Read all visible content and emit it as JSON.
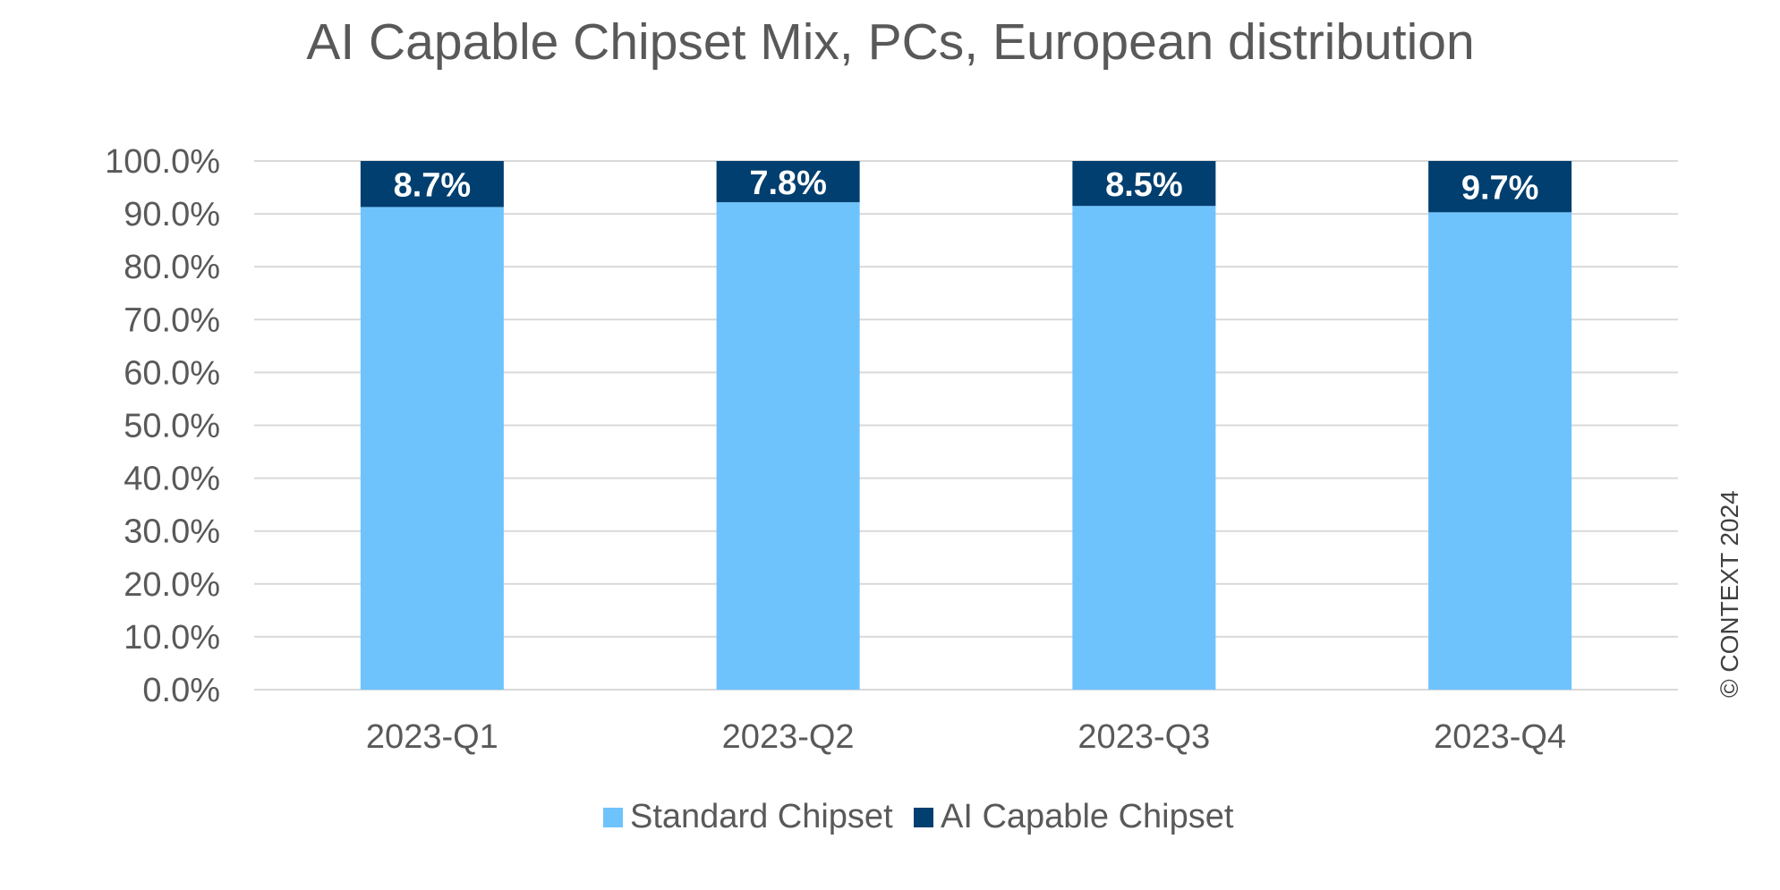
{
  "chart_data": {
    "type": "bar",
    "stacked": true,
    "title": "AI Capable Chipset Mix, PCs, European distribution",
    "categories": [
      "2023-Q1",
      "2023-Q2",
      "2023-Q3",
      "2023-Q4"
    ],
    "series": [
      {
        "name": "Standard Chipset",
        "values": [
          91.3,
          92.2,
          91.5,
          90.3
        ],
        "color": "#6ec3fd"
      },
      {
        "name": "AI Capable Chipset",
        "values": [
          8.7,
          7.8,
          8.5,
          9.7
        ],
        "color": "#003f6f",
        "labels": [
          "8.7%",
          "7.8%",
          "8.5%",
          "9.7%"
        ]
      }
    ],
    "ylim": [
      0,
      100
    ],
    "yticks": [
      "0.0%",
      "10.0%",
      "20.0%",
      "30.0%",
      "40.0%",
      "50.0%",
      "60.0%",
      "70.0%",
      "80.0%",
      "90.0%",
      "100.0%"
    ],
    "grid": true,
    "legend_position": "bottom"
  },
  "copyright": "© CONTEXT 2024"
}
